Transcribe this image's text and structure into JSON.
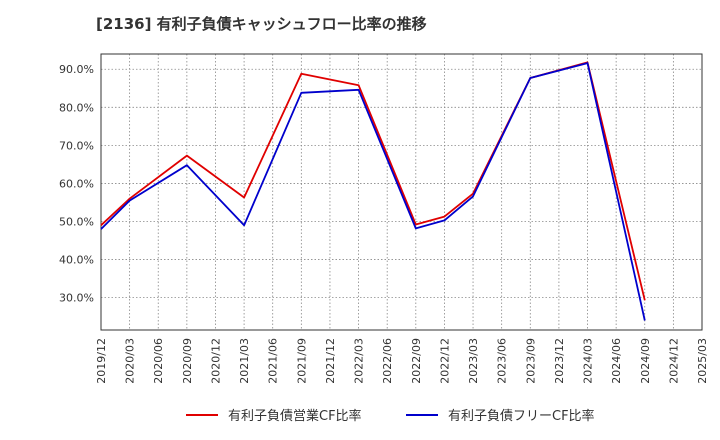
{
  "chart_data": {
    "type": "line",
    "title": "[2136]  有利子負債キャッシュフロー比率の推移",
    "xlabel": "",
    "ylabel": "",
    "ylim": [
      21.5,
      94.0
    ],
    "y_ticks": [
      "30.0%",
      "40.0%",
      "50.0%",
      "60.0%",
      "70.0%",
      "80.0%",
      "90.0%"
    ],
    "y_tick_values": [
      30,
      40,
      50,
      60,
      70,
      80,
      90
    ],
    "categories": [
      "2019/12",
      "2020/03",
      "2020/06",
      "2020/09",
      "2020/12",
      "2021/03",
      "2021/06",
      "2021/09",
      "2021/12",
      "2022/03",
      "2022/06",
      "2022/09",
      "2022/12",
      "2023/03",
      "2023/06",
      "2023/09",
      "2023/12",
      "2024/03",
      "2024/06",
      "2024/09",
      "2024/12",
      "2025/03"
    ],
    "grid": true,
    "legend_position": "bottom",
    "series": [
      {
        "name": "有利子負債営業CF比率",
        "color": "#e00000",
        "values": [
          49.0,
          56.0,
          null,
          67.3,
          null,
          56.3,
          null,
          88.8,
          null,
          85.8,
          null,
          49.2,
          51.3,
          57.3,
          null,
          87.7,
          null,
          91.8,
          null,
          29.3,
          null,
          null
        ]
      },
      {
        "name": "有利子負債フリーCF比率",
        "color": "#0000cc",
        "values": [
          48.0,
          55.5,
          null,
          64.8,
          null,
          49.0,
          null,
          83.8,
          null,
          84.6,
          null,
          48.2,
          50.3,
          56.6,
          null,
          87.7,
          null,
          91.6,
          null,
          24.0,
          null,
          null
        ]
      }
    ]
  }
}
